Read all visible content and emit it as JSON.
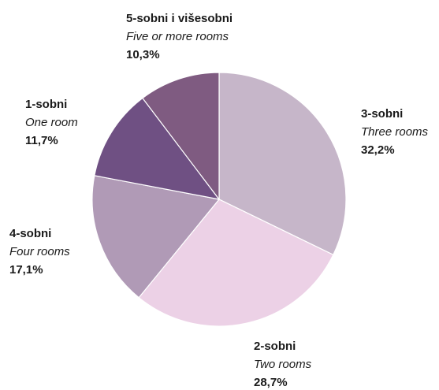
{
  "chart_data": {
    "type": "pie",
    "categories": [
      "3-sobni",
      "2-sobni",
      "4-sobni",
      "1-sobni",
      "5-sobni i višesobni"
    ],
    "subtitles": [
      "Three rooms",
      "Two rooms",
      "Four rooms",
      "One room",
      "Five or more rooms"
    ],
    "values": [
      32.2,
      28.7,
      17.1,
      11.7,
      10.3
    ],
    "value_labels": [
      "32,2%",
      "28,7%",
      "17,1%",
      "11,7%",
      "10,3%"
    ],
    "colors": [
      "#c6b6c9",
      "#ecd1e6",
      "#b09ab6",
      "#6f5083",
      "#7f5b81"
    ]
  }
}
